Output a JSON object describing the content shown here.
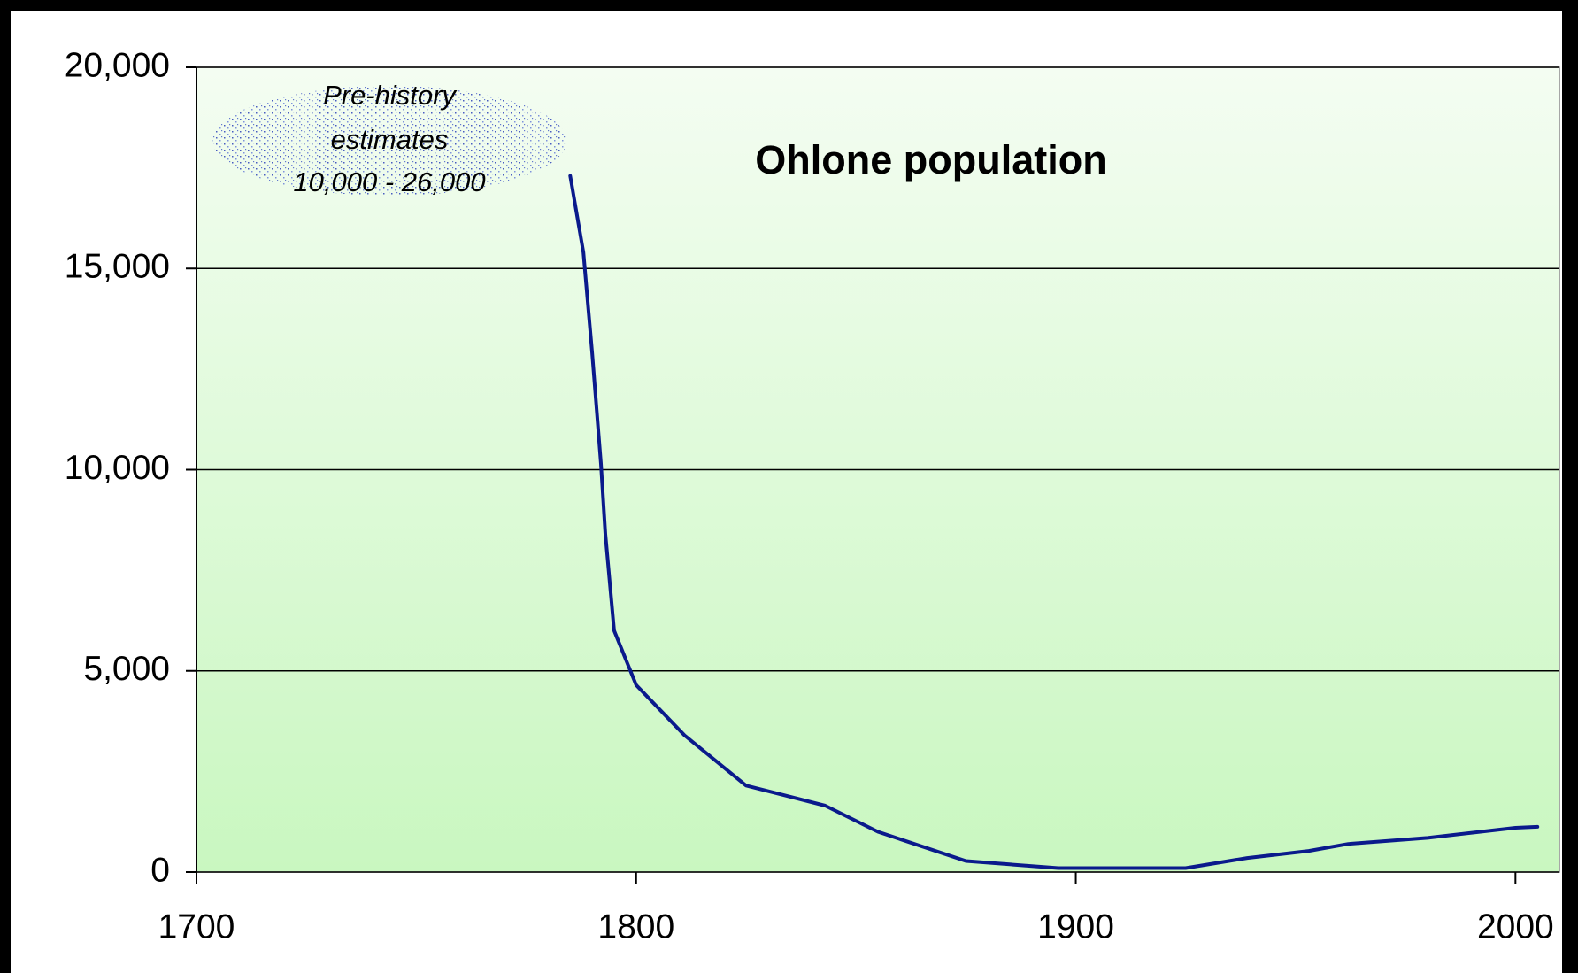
{
  "chart_data": {
    "type": "line",
    "title": "Ohlone population",
    "annotation": [
      "Pre-history",
      "estimates",
      "10,000 - 26,000"
    ],
    "x": [
      1785,
      1788,
      1790,
      1792,
      1793,
      1795,
      1800,
      1811,
      1825,
      1843,
      1855,
      1875,
      1896,
      1925,
      1939,
      1953,
      1962,
      1980,
      2000,
      2005
    ],
    "values": [
      17300,
      15400,
      12900,
      10150,
      8400,
      6000,
      4650,
      3400,
      2150,
      1650,
      1000,
      275,
      100,
      100,
      350,
      525,
      700,
      850,
      1100,
      1125
    ],
    "color": "#0a1a8c",
    "xlim": [
      1700,
      2010
    ],
    "xticks": [
      1700,
      1800,
      1900,
      2000
    ],
    "ylim": [
      0,
      20000
    ],
    "yticks": [
      0,
      {
        "value": 5000,
        "label": "5,000"
      },
      {
        "value": 10000,
        "label": "10,000"
      },
      {
        "value": 15000,
        "label": "15,000"
      },
      {
        "value": 20000,
        "label": "20,000"
      }
    ],
    "grid": true
  }
}
